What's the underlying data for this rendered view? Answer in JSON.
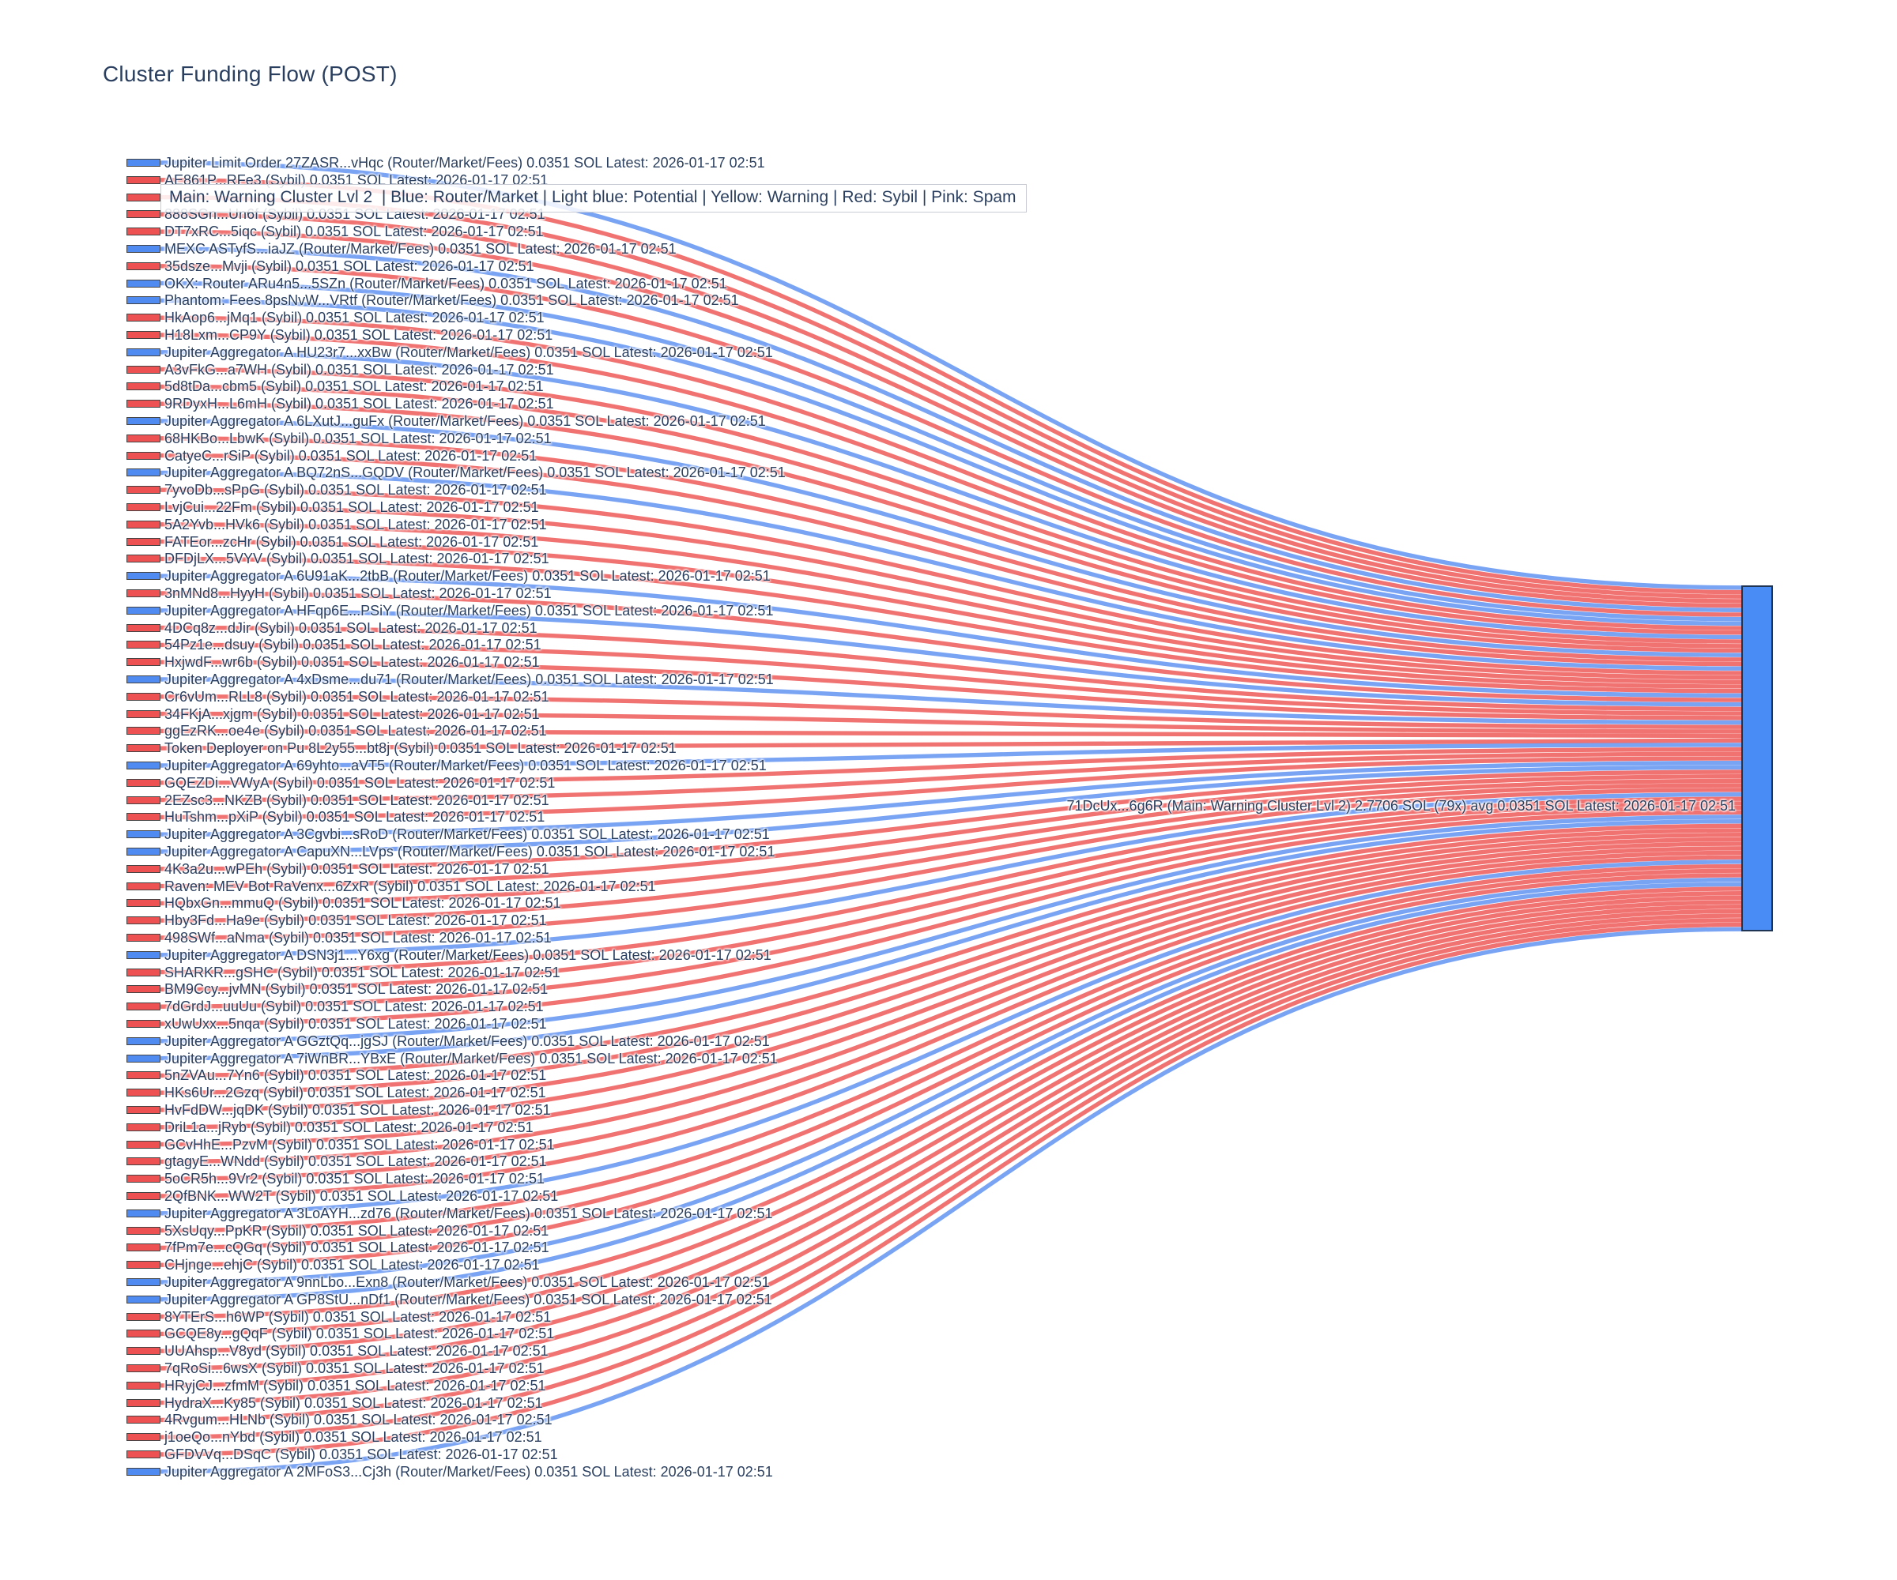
{
  "page": {
    "title": "Cluster Funding Flow (POST)"
  },
  "legend": {
    "text": "Main: Warning Cluster Lvl 2  | Blue: Router/Market | Light blue: Potential | Yellow: Warning | Red: Sybil | Pink: Spam"
  },
  "chart_data": {
    "type": "sankey",
    "title": "Cluster Funding Flow (POST)",
    "flow_value_sol": 0.0351,
    "latest_timestamp": "2026-01-17 02:51",
    "label_suffix": "0.0351 SOL Latest: 2026-01-17 02:51",
    "groups": {
      "router": {
        "tag": "(Router/Market/Fees)",
        "node_color": "#4f8bf0",
        "link_color": "#5b8ff0"
      },
      "sybil": {
        "tag": "(Sybil)",
        "node_color": "#ed5151",
        "link_color": "#ed5352"
      }
    },
    "target": {
      "label": "71DcUx...6g6R (Main: Warning Cluster Lvl 2) 2.7706 SOL (79x) avg 0.0351 SOL Latest: 2026-01-17 02:51",
      "name": "71DcUx...6g6R",
      "cluster": "Main: Warning Cluster Lvl 2",
      "total_sol": "2.7706",
      "tx_count": "79x",
      "avg_sol": "0.0351",
      "node_color": "#4a8cf5"
    },
    "sources": [
      {
        "name": "Jupiter Limit Order 27ZASR...vHqc",
        "group": "router"
      },
      {
        "name": "AE861P...RFe3",
        "group": "sybil"
      },
      {
        "name": "",
        "group": "sybil"
      },
      {
        "name": "888SGn...Un6f",
        "group": "sybil"
      },
      {
        "name": "DT7xRC...5iqc",
        "group": "sybil"
      },
      {
        "name": "MEXC ASTyfS...iaJZ",
        "group": "router"
      },
      {
        "name": "35dsze...Mvji",
        "group": "sybil"
      },
      {
        "name": "OKX: Router ARu4n5...5SZn",
        "group": "router"
      },
      {
        "name": "Phantom: Fees 8psNvW...VRtf",
        "group": "router"
      },
      {
        "name": "HkAop6...jMq1",
        "group": "sybil"
      },
      {
        "name": "H18Lxm...CP9Y",
        "group": "sybil"
      },
      {
        "name": "Jupiter Aggregator A HU23r7...xxBw",
        "group": "router"
      },
      {
        "name": "A3vFkG...a7WH",
        "group": "sybil"
      },
      {
        "name": "5d8tDa...cbm5",
        "group": "sybil"
      },
      {
        "name": "9RDyxH...L6mH",
        "group": "sybil"
      },
      {
        "name": "Jupiter Aggregator A 6LXutJ...guFx",
        "group": "router"
      },
      {
        "name": "68HKBo...LbwK",
        "group": "sybil"
      },
      {
        "name": "CatyeC...rSiP",
        "group": "sybil"
      },
      {
        "name": "Jupiter Aggregator A BQ72nS...GQDV",
        "group": "router"
      },
      {
        "name": "7yvoDb...sPpG",
        "group": "sybil"
      },
      {
        "name": "LvjCui...22Fm",
        "group": "sybil"
      },
      {
        "name": "5A2Yvb...HVk6",
        "group": "sybil"
      },
      {
        "name": "FATEor...zcHr",
        "group": "sybil"
      },
      {
        "name": "DFDjLX...5VYV",
        "group": "sybil"
      },
      {
        "name": "Jupiter Aggregator A 6U91aK...2tbB",
        "group": "router"
      },
      {
        "name": "3nMNd8...HyyH",
        "group": "sybil"
      },
      {
        "name": "Jupiter Aggregator A HFqp6E...PSiY",
        "group": "router"
      },
      {
        "name": "4DCq8z...dJir",
        "group": "sybil"
      },
      {
        "name": "54Pz1e...dsuy",
        "group": "sybil"
      },
      {
        "name": "HxjwdF...wr6b",
        "group": "sybil"
      },
      {
        "name": "Jupiter Aggregator A 4xDsme...du71",
        "group": "router"
      },
      {
        "name": "Cr6vUm...RLL8",
        "group": "sybil"
      },
      {
        "name": "34FKjA...xjgm",
        "group": "sybil"
      },
      {
        "name": "ggEzRK...oe4e",
        "group": "sybil"
      },
      {
        "name": "Token Deployer on Pu 8L2y55...bt8j",
        "group": "sybil"
      },
      {
        "name": "Jupiter Aggregator A 69yhto...aVT5",
        "group": "router"
      },
      {
        "name": "GQEZDi...VWyA",
        "group": "sybil"
      },
      {
        "name": "2EZsc3...NKZB",
        "group": "sybil"
      },
      {
        "name": "HuTshm...pXiP",
        "group": "sybil"
      },
      {
        "name": "Jupiter Aggregator A 3Cgvbi...sRoD",
        "group": "router"
      },
      {
        "name": "Jupiter Aggregator A CapuXN...LVps",
        "group": "router"
      },
      {
        "name": "4K3a2u...wPEh",
        "group": "sybil"
      },
      {
        "name": "Raven: MEV Bot RaVenx...6ZxR",
        "group": "sybil"
      },
      {
        "name": "HQbxGn...mmuQ",
        "group": "sybil"
      },
      {
        "name": "Hby3Fd...Ha9e",
        "group": "sybil"
      },
      {
        "name": "498SWf...aNma",
        "group": "sybil"
      },
      {
        "name": "Jupiter Aggregator A DSN3j1...Y6xg",
        "group": "router"
      },
      {
        "name": "SHARKR...gSHC",
        "group": "sybil"
      },
      {
        "name": "BM9Ccy...jvMN",
        "group": "sybil"
      },
      {
        "name": "7dGrdJ...uuUu",
        "group": "sybil"
      },
      {
        "name": "xUwUxx...5nqa",
        "group": "sybil"
      },
      {
        "name": "Jupiter Aggregator A GGztQq...jgSJ",
        "group": "router"
      },
      {
        "name": "Jupiter Aggregator A 7iWnBR...YBxE",
        "group": "router"
      },
      {
        "name": "5nZVAu...7Yn6",
        "group": "sybil"
      },
      {
        "name": "HKs6Ur...2Gzq",
        "group": "sybil"
      },
      {
        "name": "HvFdDW...jqDK",
        "group": "sybil"
      },
      {
        "name": "DriL1a...jRyb",
        "group": "sybil"
      },
      {
        "name": "GCvHhE...PzvM",
        "group": "sybil"
      },
      {
        "name": "gtagyE...WNdd",
        "group": "sybil"
      },
      {
        "name": "5oCR5h...9Vr2",
        "group": "sybil"
      },
      {
        "name": "2QfBNK...WW2T",
        "group": "sybil"
      },
      {
        "name": "Jupiter Aggregator A 3LoAYH...zd76",
        "group": "router"
      },
      {
        "name": "5XsUqy...PpKR",
        "group": "sybil"
      },
      {
        "name": "7fPm7e...cQGq",
        "group": "sybil"
      },
      {
        "name": "CHjnge...ehjC",
        "group": "sybil"
      },
      {
        "name": "Jupiter Aggregator A 9nnLbo...Exn8",
        "group": "router"
      },
      {
        "name": "Jupiter Aggregator A GP8StU...nDf1",
        "group": "router"
      },
      {
        "name": "8YTErS...h6WP",
        "group": "sybil"
      },
      {
        "name": "GCQE8y...gQqF",
        "group": "sybil"
      },
      {
        "name": "UUAhsp...V8yd",
        "group": "sybil"
      },
      {
        "name": "7qRoSi...6wsX",
        "group": "sybil"
      },
      {
        "name": "HRyjCJ...zfmM",
        "group": "sybil"
      },
      {
        "name": "HydraX...Ky85",
        "group": "sybil"
      },
      {
        "name": "4Rvgum...HLNb",
        "group": "sybil"
      },
      {
        "name": "j1oeQo...nYbd",
        "group": "sybil"
      },
      {
        "name": "GFDVVq...DSqC",
        "group": "sybil"
      },
      {
        "name": "Jupiter Aggregator A 2MFoS3...Cj3h",
        "group": "router"
      }
    ]
  }
}
